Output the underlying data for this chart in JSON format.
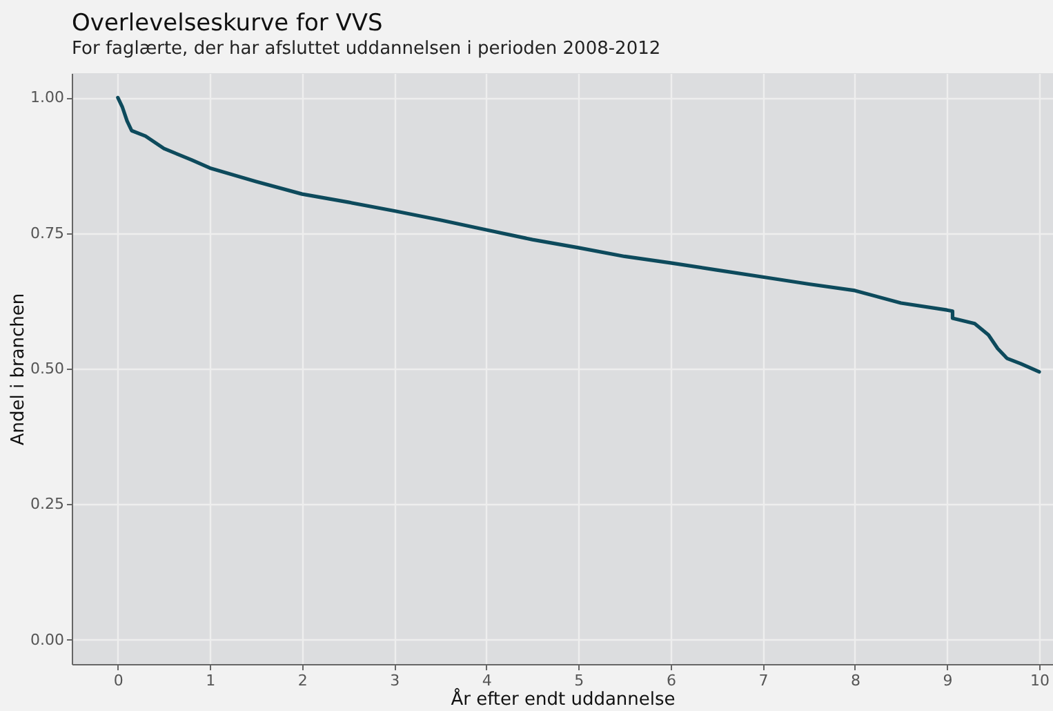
{
  "chart_data": {
    "type": "line",
    "title": "Overlevelseskurve for VVS",
    "subtitle": "For faglærte, der har afsluttet uddannelsen i perioden 2008-2012",
    "xlabel": "År efter endt uddannelse",
    "ylabel": "Andel i branchen",
    "x": [
      0,
      0.05,
      0.1,
      0.15,
      0.3,
      0.5,
      0.8,
      1.0,
      1.5,
      2.0,
      2.5,
      3.0,
      3.5,
      4.0,
      4.5,
      5.0,
      5.5,
      6.0,
      6.5,
      7.0,
      7.5,
      8.0,
      8.5,
      9.0,
      9.06,
      9.06,
      9.3,
      9.45,
      9.55,
      9.65,
      9.8,
      10.0
    ],
    "series": [
      {
        "color": "#0d4a5c",
        "values": [
          1.0,
          0.982,
          0.957,
          0.939,
          0.929,
          0.906,
          0.885,
          0.87,
          0.845,
          0.822,
          0.807,
          0.791,
          0.774,
          0.756,
          0.738,
          0.723,
          0.707,
          0.695,
          0.682,
          0.669,
          0.656,
          0.644,
          0.621,
          0.608,
          0.606,
          0.593,
          0.583,
          0.562,
          0.537,
          0.519,
          0.509,
          0.494
        ]
      }
    ],
    "xlim": [
      -0.5,
      10.15
    ],
    "xticks": [
      0,
      1,
      2,
      3,
      4,
      5,
      6,
      7,
      8,
      9,
      10
    ],
    "ylim": [
      -0.045,
      1.045
    ],
    "yticks": [
      {
        "value": 0,
        "label": "0.00"
      },
      {
        "value": 0.25,
        "label": "0.25"
      },
      {
        "value": 0.5,
        "label": "0.50"
      },
      {
        "value": 0.75,
        "label": "0.75"
      },
      {
        "value": 1,
        "label": "1.00"
      }
    ],
    "grid": true
  }
}
